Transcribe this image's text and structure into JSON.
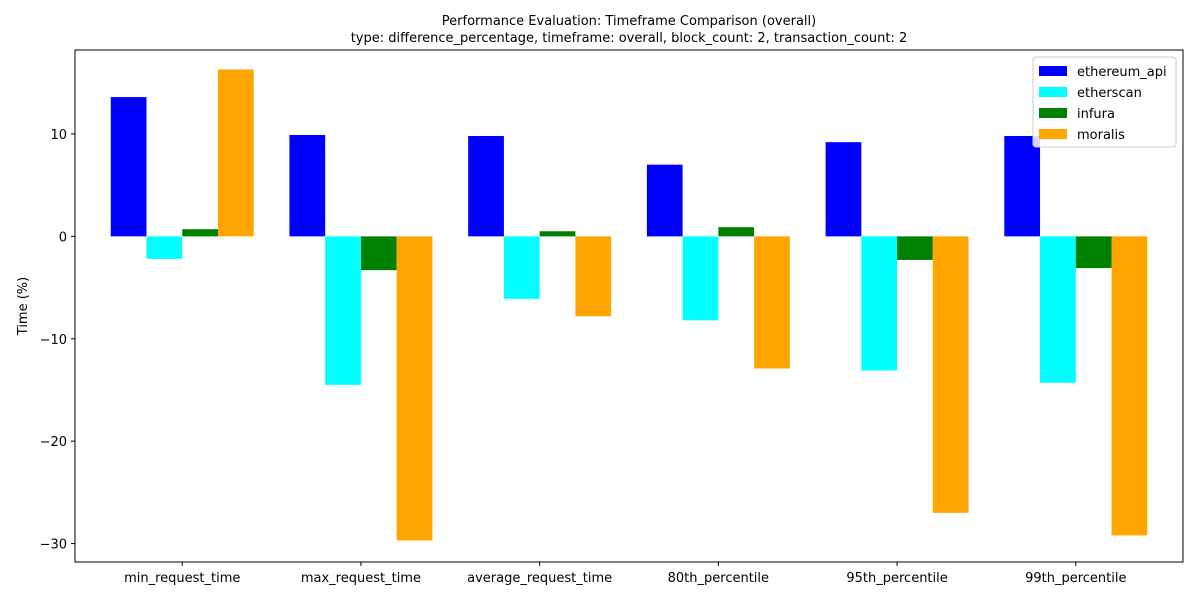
{
  "chart_data": {
    "type": "bar",
    "title": "Performance Evaluation: Timeframe Comparison (overall)",
    "subtitle": "type: difference_percentage, timeframe: overall, block_count: 2, transaction_count: 2",
    "xlabel": "",
    "ylabel": "Time (%)",
    "ylim": [
      -31.8,
      18.2
    ],
    "yticks": [
      10,
      0,
      -10,
      -20,
      -30
    ],
    "ytick_labels": [
      "10",
      "0",
      "−10",
      "−20",
      "−30"
    ],
    "grid": false,
    "legend_position": "top-right",
    "categories": [
      "min_request_time",
      "max_request_time",
      "average_request_time",
      "80th_percentile",
      "95th_percentile",
      "99th_percentile"
    ],
    "series": [
      {
        "name": "ethereum_api",
        "color": "#0000ff",
        "values": [
          13.6,
          9.9,
          9.8,
          7.0,
          9.2,
          9.8
        ]
      },
      {
        "name": "etherscan",
        "color": "#00ffff",
        "values": [
          -2.2,
          -14.5,
          -6.1,
          -8.2,
          -13.1,
          -14.3
        ]
      },
      {
        "name": "infura",
        "color": "#008000",
        "values": [
          0.7,
          -3.3,
          0.5,
          0.9,
          -2.3,
          -3.1
        ]
      },
      {
        "name": "moralis",
        "color": "#ffa500",
        "values": [
          16.3,
          -29.7,
          -7.8,
          -12.9,
          -27.0,
          -29.2
        ]
      }
    ]
  }
}
